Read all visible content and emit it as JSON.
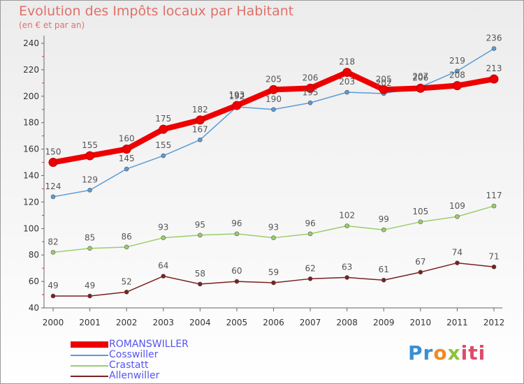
{
  "chart_data": {
    "type": "line",
    "title": "Evolution des Impôts locaux par Habitant",
    "subtitle": "(en € et par an)",
    "xlabel": "",
    "ylabel": "",
    "categories": [
      "2000",
      "2001",
      "2002",
      "2003",
      "2004",
      "2005",
      "2006",
      "2007",
      "2008",
      "2009",
      "2010",
      "2011",
      "2012"
    ],
    "ylim": [
      40,
      240
    ],
    "yticks": [
      "40",
      "60",
      "80",
      "100",
      "120",
      "140",
      "160",
      "180",
      "200",
      "220",
      "240"
    ],
    "grid": false,
    "legend_position": "bottom-left",
    "series": [
      {
        "name": "Allenwiller",
        "color": "#7a2020",
        "values": [
          49,
          49,
          52,
          64,
          58,
          60,
          59,
          62,
          63,
          61,
          67,
          74,
          71
        ]
      },
      {
        "name": "Crastatt",
        "color": "#9acd6a",
        "values": [
          82,
          85,
          86,
          93,
          95,
          96,
          93,
          96,
          102,
          99,
          105,
          109,
          117
        ]
      },
      {
        "name": "Cosswiller",
        "color": "#5b9bd5",
        "values": [
          124,
          129,
          145,
          155,
          167,
          192,
          190,
          195,
          203,
          202,
          207,
          219,
          236
        ]
      },
      {
        "name": "ROMANSWILLER",
        "color": "#ee0000",
        "values": [
          150,
          155,
          160,
          175,
          182,
          193,
          205,
          206,
          218,
          205,
          206,
          208,
          213
        ]
      }
    ],
    "legend": [
      {
        "name": "ROMANSWILLER",
        "color": "#ee0000",
        "text_color": "#5555ee"
      },
      {
        "name": "Cosswiller",
        "color": "#5b9bd5",
        "text_color": "#5555ee"
      },
      {
        "name": "Crastatt",
        "color": "#9acd6a",
        "text_color": "#5555ee"
      },
      {
        "name": "Allenwiller",
        "color": "#7a2020",
        "text_color": "#5555ee"
      }
    ]
  },
  "logo": {
    "p1": "Pr",
    "p2": "o",
    "p3": "x",
    "p4": "iti"
  }
}
